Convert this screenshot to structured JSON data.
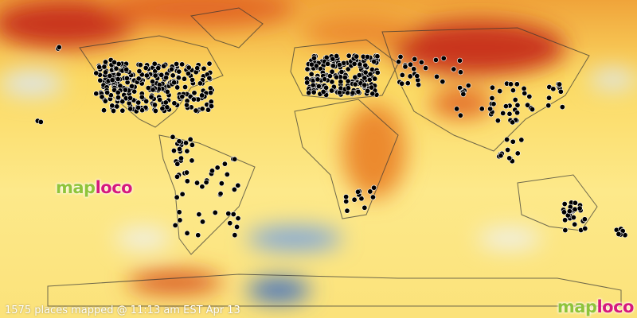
{
  "caption": "1575 places mapped @ 11:13 am EST Apr 13",
  "logo": {
    "part1": "map",
    "part2": "loco"
  },
  "colors": {
    "logo_map": "#8fc43a",
    "logo_loco": "#d6197d",
    "marker": "#000000",
    "warm": "#d9531e",
    "neutral": "#fbe27a",
    "cool": "#7ea6dc"
  },
  "marker_count": 1575
}
